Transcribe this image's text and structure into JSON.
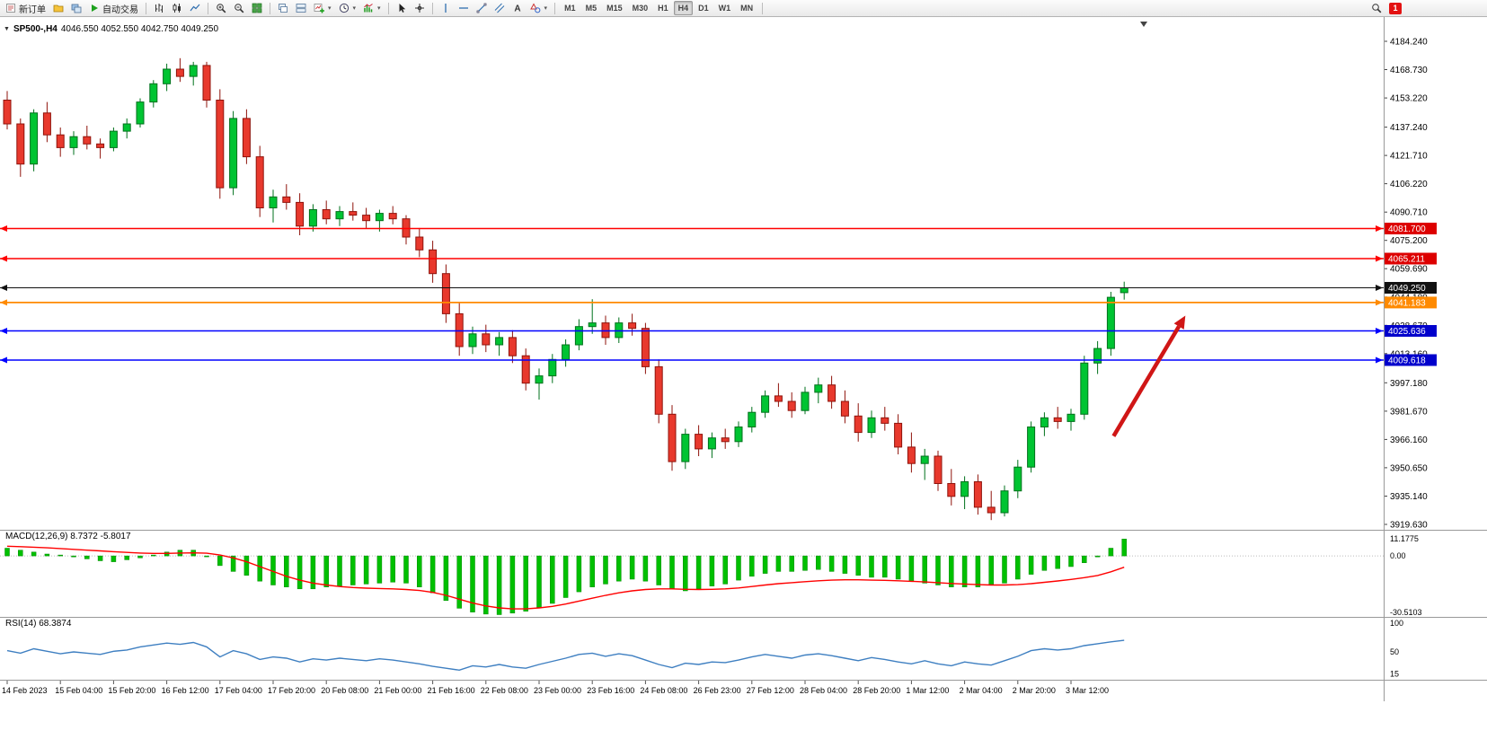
{
  "toolbar": {
    "new_order": "新订单",
    "auto_trading": "自动交易",
    "timeframes": [
      "M1",
      "M5",
      "M15",
      "M30",
      "H1",
      "H4",
      "D1",
      "W1",
      "MN"
    ],
    "active_timeframe": "H4",
    "notification_count": "1"
  },
  "chart": {
    "symbol_period": "SP500-,H4",
    "ohlc_values": "4046.550 4052.550 4042.750 4049.250",
    "macd_name": "MACD(12,26,9)",
    "macd_value": "8.7372",
    "macd_signal": "-5.8017",
    "rsi_name": "RSI(14)",
    "rsi_value": "68.3874"
  },
  "chart_data": {
    "type": "candlestick",
    "symbol": "SP500-",
    "period": "H4",
    "current_bar": {
      "open": 4046.55,
      "high": 4052.55,
      "low": 4042.75,
      "close": 4049.25
    },
    "price_axis": {
      "max": 4184.24,
      "min": 3919.63,
      "ticks": [
        "4184.240",
        "4168.730",
        "4153.220",
        "4137.240",
        "4121.710",
        "4106.220",
        "4090.710",
        "4075.200",
        "4059.690",
        "4044.180",
        "4028.670",
        "4013.160",
        "3997.180",
        "3981.670",
        "3966.160",
        "3950.650",
        "3935.140",
        "3919.630"
      ]
    },
    "time_axis": [
      "14 Feb 2023",
      "15 Feb 04:00",
      "15 Feb 20:00",
      "16 Feb 12:00",
      "17 Feb 04:00",
      "17 Feb 20:00",
      "20 Feb 08:00",
      "21 Feb 00:00",
      "21 Feb 16:00",
      "22 Feb 08:00",
      "23 Feb 00:00",
      "23 Feb 16:00",
      "24 Feb 08:00",
      "26 Feb 23:00",
      "27 Feb 12:00",
      "28 Feb 04:00",
      "28 Feb 20:00",
      "1 Mar 12:00",
      "2 Mar 04:00",
      "2 Mar 20:00",
      "3 Mar 12:00"
    ],
    "candles": [
      [
        4152,
        4157,
        4136,
        4139
      ],
      [
        4139,
        4142,
        4110,
        4117
      ],
      [
        4117,
        4147,
        4113,
        4145
      ],
      [
        4145,
        4151,
        4129,
        4133
      ],
      [
        4133,
        4137,
        4121,
        4126
      ],
      [
        4126,
        4135,
        4122,
        4132
      ],
      [
        4132,
        4138,
        4125,
        4128
      ],
      [
        4128,
        4131,
        4120,
        4126
      ],
      [
        4126,
        4137,
        4124,
        4135
      ],
      [
        4135,
        4142,
        4131,
        4139
      ],
      [
        4139,
        4153,
        4137,
        4151
      ],
      [
        4151,
        4163,
        4148,
        4161
      ],
      [
        4161,
        4172,
        4157,
        4169
      ],
      [
        4169,
        4175,
        4162,
        4165
      ],
      [
        4165,
        4173,
        4160,
        4171
      ],
      [
        4171,
        4173,
        4148,
        4152
      ],
      [
        4152,
        4158,
        4098,
        4104
      ],
      [
        4104,
        4146,
        4100,
        4142
      ],
      [
        4142,
        4147,
        4117,
        4121
      ],
      [
        4121,
        4127,
        4088,
        4093
      ],
      [
        4093,
        4103,
        4085,
        4099
      ],
      [
        4099,
        4106,
        4092,
        4096
      ],
      [
        4096,
        4101,
        4078,
        4083
      ],
      [
        4083,
        4095,
        4080,
        4092
      ],
      [
        4092,
        4097,
        4084,
        4087
      ],
      [
        4087,
        4094,
        4083,
        4091
      ],
      [
        4091,
        4096,
        4086,
        4089
      ],
      [
        4089,
        4093,
        4082,
        4086
      ],
      [
        4086,
        4092,
        4080,
        4090
      ],
      [
        4090,
        4094,
        4084,
        4087
      ],
      [
        4087,
        4089,
        4073,
        4077
      ],
      [
        4077,
        4082,
        4066,
        4070
      ],
      [
        4070,
        4075,
        4052,
        4057
      ],
      [
        4057,
        4062,
        4030,
        4035
      ],
      [
        4035,
        4041,
        4012,
        4017
      ],
      [
        4017,
        4028,
        4013,
        4024
      ],
      [
        4024,
        4029,
        4014,
        4018
      ],
      [
        4018,
        4025,
        4012,
        4022
      ],
      [
        4022,
        4026,
        4008,
        4012
      ],
      [
        4012,
        4016,
        3993,
        3997
      ],
      [
        3997,
        4005,
        3988,
        4001
      ],
      [
        4001,
        4013,
        3997,
        4010
      ],
      [
        4010,
        4021,
        4006,
        4018
      ],
      [
        4018,
        4032,
        4015,
        4028
      ],
      [
        4028,
        4043,
        4024,
        4030
      ],
      [
        4030,
        4034,
        4018,
        4022
      ],
      [
        4022,
        4033,
        4019,
        4030
      ],
      [
        4030,
        4035,
        4023,
        4027
      ],
      [
        4027,
        4030,
        4002,
        4006
      ],
      [
        4006,
        4010,
        3975,
        3980
      ],
      [
        3980,
        3985,
        3949,
        3954
      ],
      [
        3954,
        3972,
        3950,
        3969
      ],
      [
        3969,
        3974,
        3957,
        3961
      ],
      [
        3961,
        3970,
        3956,
        3967
      ],
      [
        3967,
        3972,
        3961,
        3965
      ],
      [
        3965,
        3976,
        3962,
        3973
      ],
      [
        3973,
        3984,
        3970,
        3981
      ],
      [
        3981,
        3993,
        3978,
        3990
      ],
      [
        3990,
        3997,
        3984,
        3987
      ],
      [
        3987,
        3992,
        3978,
        3982
      ],
      [
        3982,
        3995,
        3980,
        3992
      ],
      [
        3992,
        4000,
        3986,
        3996
      ],
      [
        3996,
        4001,
        3983,
        3987
      ],
      [
        3987,
        3993,
        3975,
        3979
      ],
      [
        3979,
        3986,
        3965,
        3970
      ],
      [
        3970,
        3982,
        3967,
        3978
      ],
      [
        3978,
        3984,
        3971,
        3975
      ],
      [
        3975,
        3980,
        3958,
        3962
      ],
      [
        3962,
        3970,
        3948,
        3953
      ],
      [
        3953,
        3961,
        3944,
        3957
      ],
      [
        3957,
        3960,
        3938,
        3942
      ],
      [
        3942,
        3950,
        3930,
        3935
      ],
      [
        3935,
        3946,
        3928,
        3943
      ],
      [
        3943,
        3947,
        3925,
        3929
      ],
      [
        3929,
        3938,
        3922,
        3926
      ],
      [
        3926,
        3941,
        3924,
        3938
      ],
      [
        3938,
        3955,
        3934,
        3951
      ],
      [
        3951,
        3976,
        3948,
        3973
      ],
      [
        3973,
        3981,
        3968,
        3978
      ],
      [
        3978,
        3984,
        3972,
        3976
      ],
      [
        3976,
        3983,
        3971,
        3980
      ],
      [
        3980,
        4012,
        3977,
        4008
      ],
      [
        4008,
        4020,
        4002,
        4016
      ],
      [
        4016,
        4047,
        4012,
        4044
      ],
      [
        4046.55,
        4052.55,
        4042.75,
        4049.25
      ]
    ],
    "style": {
      "up_fill": "#00c432",
      "up_border": "#00711c",
      "down_fill": "#e8392d",
      "down_border": "#8f130b"
    },
    "hlines": [
      {
        "price": 4081.7,
        "label": "4081.700",
        "color": "#ff0000",
        "badge": "#dd0000",
        "width": 1.6
      },
      {
        "price": 4065.211,
        "label": "4065.211",
        "color": "#ff0000",
        "badge": "#dd0000",
        "width": 1.6
      },
      {
        "price": 4049.25,
        "label": "4049.250",
        "color": "#111111",
        "badge": "#111111",
        "width": 1
      },
      {
        "price": 4041.183,
        "label": "4041.183",
        "color": "#ff8a00",
        "badge": "#ff8a00",
        "width": 1.8
      },
      {
        "price": 4025.636,
        "label": "4025.636",
        "color": "#0000ff",
        "badge": "#0000cc",
        "width": 1.6
      },
      {
        "price": 4009.618,
        "label": "4009.618",
        "color": "#0000ff",
        "badge": "#0000cc",
        "width": 1.6
      }
    ],
    "arrow": {
      "from": {
        "bar": 83.2,
        "price": 3968
      },
      "to": {
        "bar": 88.6,
        "price": 4034
      },
      "color": "#d01616"
    },
    "macd": {
      "label": "MACD(12,26,9)",
      "value": 8.7372,
      "signal_value": -5.8017,
      "scale": {
        "max": 11.1775,
        "min": -30.5103,
        "max_label": "11.1775",
        "zero_label": "0.00",
        "min_label": "-30.5103"
      },
      "histogram": [
        4,
        3,
        2,
        1,
        0.5,
        -0.5,
        -1.5,
        -2.5,
        -3,
        -2,
        -1,
        0.5,
        2,
        3,
        3,
        0,
        -5,
        -8,
        -10,
        -13,
        -15,
        -16,
        -17,
        -17,
        -16,
        -15.5,
        -15,
        -14.5,
        -14,
        -13.5,
        -14,
        -16,
        -19,
        -23,
        -27,
        -29,
        -30,
        -30.3,
        -29.5,
        -28.5,
        -26.5,
        -24.5,
        -21.5,
        -18.5,
        -16,
        -14.5,
        -13,
        -12,
        -13,
        -15,
        -17,
        -18,
        -17,
        -15.5,
        -14.5,
        -12.5,
        -10.5,
        -9,
        -8,
        -8,
        -7.5,
        -7,
        -8,
        -9,
        -10,
        -11,
        -11,
        -12,
        -13,
        -14,
        -15,
        -16,
        -16,
        -16,
        -15,
        -14,
        -12,
        -9.5,
        -7.5,
        -6.5,
        -5.5,
        -3.5,
        -0.5,
        4,
        8.74
      ],
      "signal": [
        5,
        4.8,
        4.5,
        4.2,
        3.8,
        3.4,
        3,
        2.6,
        2.2,
        1.8,
        1.5,
        1.3,
        1.3,
        1.5,
        1.6,
        1.4,
        0.5,
        -1,
        -3,
        -5.5,
        -8,
        -10.5,
        -12.5,
        -14,
        -15,
        -15.8,
        -16.3,
        -16.6,
        -16.8,
        -17,
        -17.3,
        -17.8,
        -18.8,
        -20.3,
        -22.3,
        -24.3,
        -25.8,
        -26.8,
        -27.3,
        -27.3,
        -26.8,
        -26,
        -24.8,
        -23.3,
        -21.8,
        -20.3,
        -19,
        -18,
        -17.3,
        -17,
        -17,
        -17.2,
        -17.3,
        -17.2,
        -17,
        -16.5,
        -15.8,
        -15,
        -14.3,
        -13.8,
        -13.3,
        -12.8,
        -12.5,
        -12.3,
        -12.3,
        -12.5,
        -12.6,
        -12.8,
        -13.1,
        -13.4,
        -13.8,
        -14.2,
        -14.5,
        -14.8,
        -15,
        -15,
        -14.8,
        -14.3,
        -13.6,
        -12.9,
        -12.1,
        -11.2,
        -10.1,
        -8.2,
        -5.8
      ]
    },
    "rsi": {
      "label": "RSI(14)",
      "value": 68.3874,
      "scale_labels": [
        "100",
        "50",
        "15"
      ],
      "values": [
        52,
        48,
        55,
        51,
        47,
        50,
        48,
        46,
        51,
        53,
        58,
        61,
        64,
        62,
        65,
        58,
        42,
        52,
        47,
        38,
        42,
        40,
        34,
        39,
        37,
        40,
        38,
        36,
        39,
        37,
        34,
        31,
        27,
        24,
        21,
        28,
        26,
        30,
        26,
        24,
        30,
        35,
        40,
        46,
        48,
        43,
        47,
        44,
        37,
        30,
        25,
        32,
        30,
        34,
        33,
        37,
        42,
        46,
        43,
        40,
        45,
        47,
        44,
        40,
        36,
        41,
        38,
        34,
        31,
        36,
        31,
        28,
        34,
        31,
        29,
        36,
        43,
        52,
        55,
        53,
        55,
        60,
        63,
        66,
        68.39
      ]
    }
  }
}
